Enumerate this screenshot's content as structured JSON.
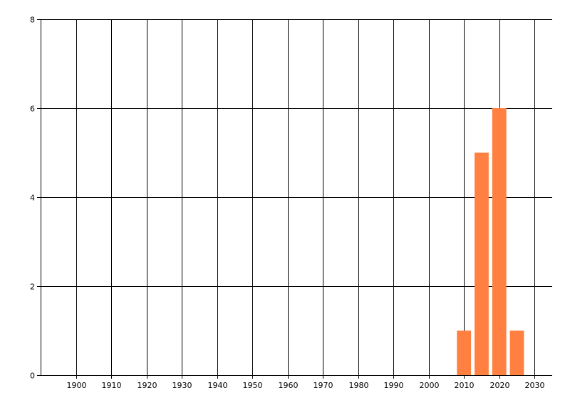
{
  "chart_data": {
    "type": "bar",
    "title": "",
    "xlabel": "",
    "ylabel": "",
    "x": [
      2010,
      2015,
      2020,
      2025
    ],
    "values": [
      1,
      5,
      6,
      1
    ],
    "bar_width_years": 4,
    "xlim": [
      1890,
      2035
    ],
    "ylim": [
      0,
      8
    ],
    "xticks": [
      1900,
      1910,
      1920,
      1930,
      1940,
      1950,
      1960,
      1970,
      1980,
      1990,
      2000,
      2010,
      2020,
      2030
    ],
    "yticks": [
      0,
      2,
      4,
      6,
      8
    ],
    "grid": true,
    "legend": "none",
    "colors": {
      "bar": "#FF8040",
      "grid": "#000000",
      "text": "#000000"
    }
  }
}
